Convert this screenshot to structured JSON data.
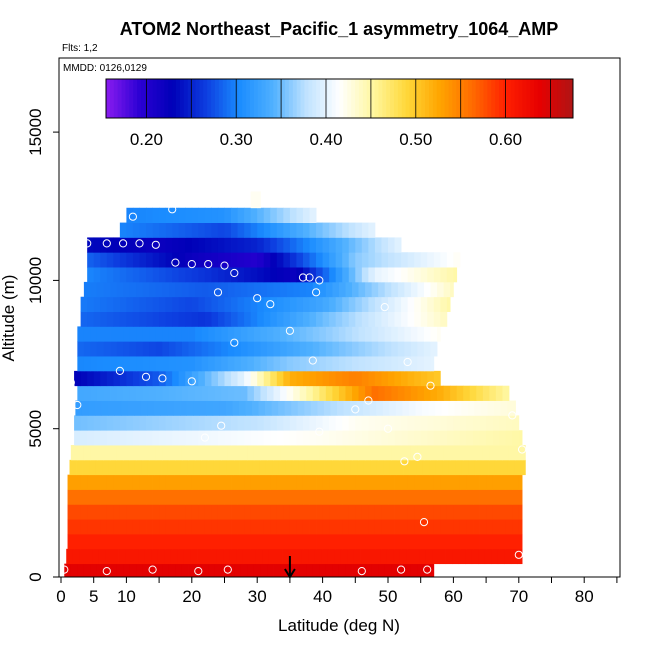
{
  "chart_data": {
    "type": "heatmap",
    "title": "ATOM2 Northeast_Pacific_1 asymmetry_1064_AMP",
    "flights_label": "Flts: 1,2",
    "dates_label": "MMDD: 0126,0129",
    "xlabel": "Latitude (deg N)",
    "ylabel": "Altitude (m)",
    "xlim": [
      0,
      85
    ],
    "ylim": [
      0,
      17500
    ],
    "x_ticks": [
      0,
      5,
      10,
      20,
      30,
      40,
      50,
      60,
      70,
      80
    ],
    "x_minor_ticks": [
      15,
      25,
      35,
      45,
      55,
      65,
      75,
      85
    ],
    "y_ticks": [
      0,
      5000,
      10000,
      15000
    ],
    "colorbar": {
      "range": [
        0.155,
        0.675
      ],
      "ticks": [
        0.2,
        0.3,
        0.4,
        0.5,
        0.6
      ],
      "tick_labels": [
        "0.20",
        "0.30",
        "0.40",
        "0.50",
        "0.60"
      ],
      "colors": [
        "#8a1cf0",
        "#2c00d4",
        "#0000b8",
        "#0d3ee0",
        "#1a8cff",
        "#4fb0ff",
        "#bfe2ff",
        "#ffffff",
        "#fff7a0",
        "#ffd83a",
        "#ffa500",
        "#ff6a00",
        "#ff1f00",
        "#e60000",
        "#b01515"
      ]
    },
    "marker_latitude": 35,
    "bands": [
      {
        "y0": 0,
        "y1": 450,
        "x0": 0.5,
        "x1": 57,
        "values": [
          [
            0,
            0.64
          ],
          [
            57,
            0.64
          ]
        ]
      },
      {
        "y0": 450,
        "y1": 950,
        "x0": 0.8,
        "x1": 70.5,
        "values": [
          [
            0,
            0.61
          ],
          [
            70.5,
            0.61
          ]
        ]
      },
      {
        "y0": 950,
        "y1": 1450,
        "x0": 1,
        "x1": 70.5,
        "values": [
          [
            0,
            0.6
          ],
          [
            70.5,
            0.6
          ]
        ]
      },
      {
        "y0": 1450,
        "y1": 1950,
        "x0": 1,
        "x1": 70.5,
        "values": [
          [
            0,
            0.59
          ],
          [
            70.5,
            0.59
          ]
        ]
      },
      {
        "y0": 1950,
        "y1": 2450,
        "x0": 1,
        "x1": 70.5,
        "values": [
          [
            0,
            0.58
          ],
          [
            70.5,
            0.58
          ]
        ]
      },
      {
        "y0": 2450,
        "y1": 2950,
        "x0": 1,
        "x1": 70.5,
        "values": [
          [
            0,
            0.56
          ],
          [
            70.5,
            0.56
          ]
        ]
      },
      {
        "y0": 2950,
        "y1": 3450,
        "x0": 1,
        "x1": 70.5,
        "values": [
          [
            0,
            0.53
          ],
          [
            70.5,
            0.53
          ]
        ]
      },
      {
        "y0": 3450,
        "y1": 3950,
        "x0": 1.3,
        "x1": 71,
        "values": [
          [
            0,
            0.49
          ],
          [
            71,
            0.49
          ]
        ]
      },
      {
        "y0": 3950,
        "y1": 4450,
        "x0": 1.5,
        "x1": 71,
        "values": [
          [
            0,
            0.45
          ],
          [
            71,
            0.45
          ]
        ]
      },
      {
        "y0": 4450,
        "y1": 4950,
        "x0": 2,
        "x1": 70.5,
        "values": [
          [
            0,
            0.39
          ],
          [
            40,
            0.42
          ],
          [
            70.5,
            0.45
          ]
        ]
      },
      {
        "y0": 4950,
        "y1": 5450,
        "x0": 2,
        "x1": 70,
        "values": [
          [
            0,
            0.35
          ],
          [
            30,
            0.38
          ],
          [
            45,
            0.42
          ],
          [
            70,
            0.44
          ]
        ]
      },
      {
        "y0": 5450,
        "y1": 5950,
        "x0": 2.2,
        "x1": 69.5,
        "values": [
          [
            0,
            0.32
          ],
          [
            25,
            0.33
          ],
          [
            40,
            0.37
          ],
          [
            55,
            0.41
          ],
          [
            69.5,
            0.43
          ]
        ]
      },
      {
        "y0": 5950,
        "y1": 6450,
        "x0": 2.5,
        "x1": 68.5,
        "values": [
          [
            0,
            0.33
          ],
          [
            28,
            0.35
          ],
          [
            38,
            0.45
          ],
          [
            48,
            0.56
          ],
          [
            58,
            0.52
          ],
          [
            68.5,
            0.45
          ]
        ]
      },
      {
        "y0": 6450,
        "y1": 6950,
        "x0": 2,
        "x1": 58,
        "values": [
          [
            0,
            0.22
          ],
          [
            15,
            0.28
          ],
          [
            28,
            0.4
          ],
          [
            35,
            0.52
          ],
          [
            45,
            0.55
          ],
          [
            58,
            0.5
          ]
        ]
      },
      {
        "y0": 6950,
        "y1": 7450,
        "x0": 2.5,
        "x1": 57,
        "values": [
          [
            0,
            0.3
          ],
          [
            20,
            0.31
          ],
          [
            35,
            0.36
          ],
          [
            57,
            0.4
          ]
        ]
      },
      {
        "y0": 7450,
        "y1": 7950,
        "x0": 2.5,
        "x1": 57.5,
        "values": [
          [
            0,
            0.29
          ],
          [
            15,
            0.27
          ],
          [
            35,
            0.33
          ],
          [
            57.5,
            0.4
          ]
        ]
      },
      {
        "y0": 7950,
        "y1": 8450,
        "x0": 2.5,
        "x1": 58,
        "values": [
          [
            0,
            0.3
          ],
          [
            20,
            0.3
          ],
          [
            40,
            0.36
          ],
          [
            58,
            0.42
          ]
        ]
      },
      {
        "y0": 8450,
        "y1": 8950,
        "x0": 3,
        "x1": 59,
        "values": [
          [
            0,
            0.29
          ],
          [
            22,
            0.26
          ],
          [
            40,
            0.35
          ],
          [
            59,
            0.44
          ]
        ]
      },
      {
        "y0": 8950,
        "y1": 9450,
        "x0": 3,
        "x1": 59.5,
        "values": [
          [
            0,
            0.3
          ],
          [
            20,
            0.27
          ],
          [
            40,
            0.33
          ],
          [
            59.5,
            0.45
          ]
        ]
      },
      {
        "y0": 9450,
        "y1": 9950,
        "x0": 3.5,
        "x1": 60,
        "values": [
          [
            0,
            0.3
          ],
          [
            22,
            0.28
          ],
          [
            38,
            0.3
          ],
          [
            60,
            0.44
          ]
        ]
      },
      {
        "y0": 9950,
        "y1": 10450,
        "x0": 4,
        "x1": 60.5,
        "values": [
          [
            0,
            0.31
          ],
          [
            22,
            0.26
          ],
          [
            36,
            0.22
          ],
          [
            48,
            0.4
          ],
          [
            60.5,
            0.45
          ]
        ]
      },
      {
        "y0": 10450,
        "y1": 10950,
        "x0": 4,
        "x1": 61,
        "values": [
          [
            0,
            0.3
          ],
          [
            20,
            0.22
          ],
          [
            30,
            0.2
          ],
          [
            45,
            0.36
          ],
          [
            61,
            0.42
          ]
        ]
      },
      {
        "y0": 10950,
        "y1": 11450,
        "x0": 4,
        "x1": 52,
        "values": [
          [
            0,
            0.24
          ],
          [
            15,
            0.22
          ],
          [
            30,
            0.25
          ],
          [
            52,
            0.4
          ]
        ]
      },
      {
        "y0": 11450,
        "y1": 11950,
        "x0": 9,
        "x1": 48,
        "values": [
          [
            9,
            0.3
          ],
          [
            25,
            0.27
          ],
          [
            48,
            0.4
          ]
        ]
      },
      {
        "y0": 11950,
        "y1": 12450,
        "x0": 10,
        "x1": 39,
        "values": [
          [
            10,
            0.3
          ],
          [
            25,
            0.31
          ],
          [
            39,
            0.4
          ]
        ]
      },
      {
        "y0": 12450,
        "y1": 13000,
        "x0": 29,
        "x1": 30.5,
        "values": [
          [
            29,
            0.42
          ],
          [
            30.5,
            0.42
          ]
        ]
      }
    ],
    "points": [
      [
        0.5,
        250
      ],
      [
        7,
        200
      ],
      [
        14,
        250
      ],
      [
        21,
        200
      ],
      [
        25.5,
        250
      ],
      [
        46,
        200
      ],
      [
        52,
        250
      ],
      [
        56,
        250
      ],
      [
        70,
        750
      ],
      [
        55.5,
        1850
      ],
      [
        52.5,
        3900
      ],
      [
        54.5,
        4050
      ],
      [
        70.5,
        4300
      ],
      [
        22,
        4700
      ],
      [
        24.5,
        5100
      ],
      [
        39.5,
        4900
      ],
      [
        50,
        5000
      ],
      [
        45,
        5650
      ],
      [
        47,
        5950
      ],
      [
        69,
        5450
      ],
      [
        2.5,
        5800
      ],
      [
        1.5,
        6400
      ],
      [
        1.5,
        6550
      ],
      [
        9,
        6950
      ],
      [
        13,
        6750
      ],
      [
        15.5,
        6700
      ],
      [
        20,
        6600
      ],
      [
        56.5,
        6450
      ],
      [
        38.5,
        7300
      ],
      [
        53,
        7250
      ],
      [
        26.5,
        7900
      ],
      [
        35,
        8300
      ],
      [
        30,
        9400
      ],
      [
        32,
        9200
      ],
      [
        24,
        9600
      ],
      [
        39,
        9600
      ],
      [
        49.5,
        9100
      ],
      [
        61,
        9700
      ],
      [
        37,
        10100
      ],
      [
        38,
        10100
      ],
      [
        39.5,
        10000
      ],
      [
        26.5,
        10250
      ],
      [
        17.5,
        10600
      ],
      [
        20,
        10550
      ],
      [
        22.5,
        10550
      ],
      [
        25,
        10500
      ],
      [
        4,
        11250
      ],
      [
        7,
        11250
      ],
      [
        9.5,
        11250
      ],
      [
        12,
        11250
      ],
      [
        14.5,
        11200
      ],
      [
        11,
        12150
      ],
      [
        17,
        12400
      ]
    ]
  }
}
